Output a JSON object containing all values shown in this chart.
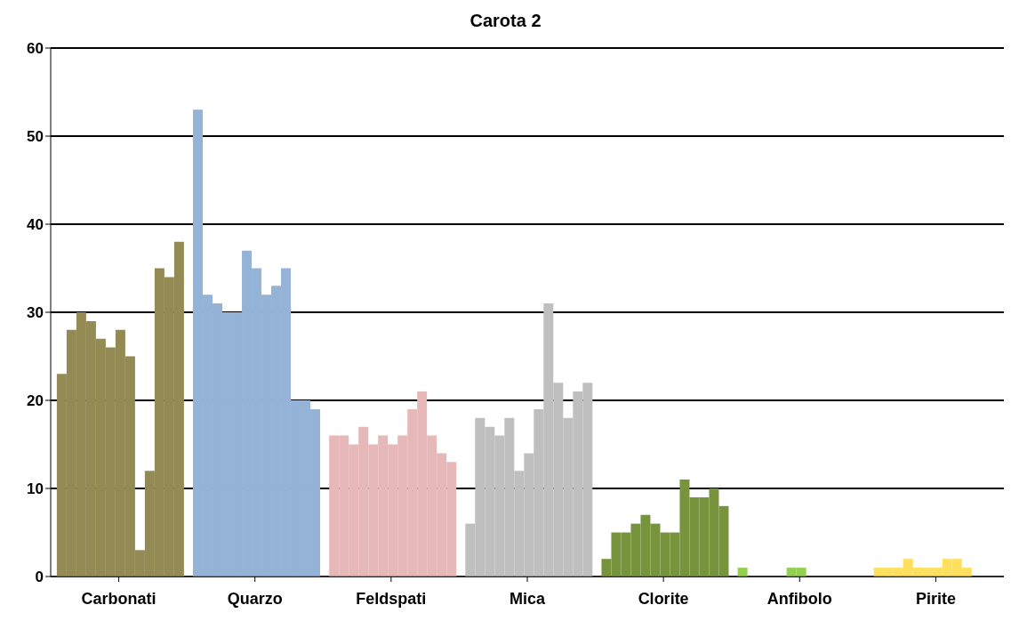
{
  "chart_data": {
    "type": "bar",
    "title": "Carota 2",
    "categories": [
      "Carbonati",
      "Quarzo",
      "Feldspati",
      "Mica",
      "Clorite",
      "Anfibolo",
      "Pirite"
    ],
    "series": [
      {
        "colors": [
          "#948a54",
          "#95b3d7",
          "#e6b9b8",
          "#bfbfbf",
          "#77933c",
          "#92d050",
          "#fedf5e"
        ],
        "values": [
          23,
          53,
          16,
          6,
          2,
          1,
          1
        ]
      },
      {
        "colors": [
          "#948a54",
          "#95b3d7",
          "#e6b9b8",
          "#bfbfbf",
          "#77933c",
          "#92d050",
          "#fedf5e"
        ],
        "values": [
          28,
          32,
          16,
          18,
          5,
          0,
          1
        ]
      },
      {
        "colors": [
          "#948a54",
          "#95b3d7",
          "#e6b9b8",
          "#bfbfbf",
          "#77933c",
          "#92d050",
          "#fedf5e"
        ],
        "values": [
          30,
          31,
          15,
          17,
          5,
          0,
          1
        ]
      },
      {
        "colors": [
          "#948a54",
          "#95b3d7",
          "#e6b9b8",
          "#bfbfbf",
          "#77933c",
          "#92d050",
          "#fedf5e"
        ],
        "values": [
          29,
          30,
          17,
          16,
          6,
          0,
          2
        ]
      },
      {
        "colors": [
          "#948a54",
          "#95b3d7",
          "#e6b9b8",
          "#bfbfbf",
          "#77933c",
          "#92d050",
          "#fedf5e"
        ],
        "values": [
          27,
          30,
          15,
          18,
          7,
          0,
          1
        ]
      },
      {
        "colors": [
          "#948a54",
          "#95b3d7",
          "#e6b9b8",
          "#bfbfbf",
          "#77933c",
          "#92d050",
          "#fedf5e"
        ],
        "values": [
          26,
          37,
          16,
          12,
          6,
          1,
          1
        ]
      },
      {
        "colors": [
          "#948a54",
          "#95b3d7",
          "#e6b9b8",
          "#bfbfbf",
          "#77933c",
          "#92d050",
          "#fedf5e"
        ],
        "values": [
          28,
          35,
          15,
          14,
          5,
          1,
          1
        ]
      },
      {
        "colors": [
          "#948a54",
          "#95b3d7",
          "#e6b9b8",
          "#bfbfbf",
          "#77933c",
          "#92d050",
          "#fedf5e"
        ],
        "values": [
          25,
          32,
          16,
          19,
          5,
          0,
          2
        ]
      },
      {
        "colors": [
          "#948a54",
          "#95b3d7",
          "#e6b9b8",
          "#bfbfbf",
          "#77933c",
          "#92d050",
          "#fedf5e"
        ],
        "values": [
          3,
          33,
          19,
          31,
          11,
          0,
          2
        ]
      },
      {
        "colors": [
          "#948a54",
          "#95b3d7",
          "#e6b9b8",
          "#bfbfbf",
          "#77933c",
          "#92d050",
          "#fedf5e"
        ],
        "values": [
          12,
          35,
          21,
          22,
          9,
          0,
          1
        ]
      },
      {
        "colors": [
          "#948a54",
          "#95b3d7",
          "#e6b9b8",
          "#bfbfbf",
          "#77933c",
          "#92d050",
          "#fedf5e"
        ],
        "values": [
          35,
          20,
          16,
          18,
          9,
          0,
          0
        ]
      },
      {
        "colors": [
          "#948a54",
          "#95b3d7",
          "#e6b9b8",
          "#bfbfbf",
          "#77933c",
          "#92d050",
          "#fedf5e"
        ],
        "values": [
          34,
          20,
          14,
          21,
          10,
          0,
          0
        ]
      },
      {
        "colors": [
          "#948a54",
          "#95b3d7",
          "#e6b9b8",
          "#bfbfbf",
          "#77933c",
          "#92d050",
          "#fedf5e"
        ],
        "values": [
          38,
          19,
          13,
          22,
          8,
          0,
          0
        ]
      }
    ],
    "ylim": [
      0,
      60
    ],
    "yticks": [
      0,
      10,
      20,
      30,
      40,
      50,
      60
    ],
    "grid": "y",
    "legend": false
  }
}
